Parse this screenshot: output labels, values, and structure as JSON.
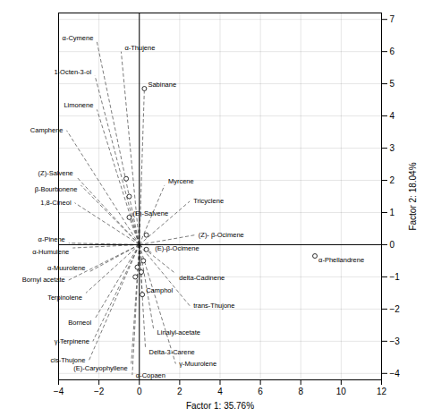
{
  "chart_data": {
    "type": "biplot",
    "xlabel": "Factor 1: 35.76%",
    "ylabel": "Factor 2: 18.04%",
    "xlim": [
      -4,
      12
    ],
    "ylim": [
      -4.2,
      7.2
    ],
    "xticks": [
      -4,
      -2,
      0,
      2,
      4,
      6,
      8,
      10,
      12
    ],
    "yticks": [
      -4,
      -3,
      -2,
      -1,
      0,
      1,
      2,
      3,
      4,
      5,
      6,
      7
    ],
    "grid": true,
    "vectors": [
      {
        "label": "α-Cymene",
        "x": -2.1,
        "y": 6.3
      },
      {
        "label": "α-Thujene",
        "x": -0.9,
        "y": 6.0
      },
      {
        "label": "1-Octen-3-ol",
        "x": -2.2,
        "y": 5.25
      },
      {
        "label": "Sabinane",
        "x": 0.25,
        "y": 4.85
      },
      {
        "label": "Limonene",
        "x": -2.1,
        "y": 4.2
      },
      {
        "label": "Camphene",
        "x": -3.6,
        "y": 3.55
      },
      {
        "label": "(Z)-Salvene",
        "x": -3.1,
        "y": 2.1
      },
      {
        "label": "β-Bourbonene",
        "x": -2.9,
        "y": 1.85
      },
      {
        "label": "1,8-Cineol",
        "x": -3.2,
        "y": 1.3
      },
      {
        "label": "Myrcene",
        "x": 1.25,
        "y": 1.85
      },
      {
        "label": "Tricyclene",
        "x": 2.5,
        "y": 1.35
      },
      {
        "label": "(E)-Salvene",
        "x": -0.5,
        "y": 0.85
      },
      {
        "label": "(Z)- β-Ocimene",
        "x": 2.75,
        "y": 0.3
      },
      {
        "label": "α-Pinene",
        "x": -3.5,
        "y": 0.05
      },
      {
        "label": "α-Humulene",
        "x": -3.3,
        "y": -0.1
      },
      {
        "label": "(E)-β-Ocimene",
        "x": 0.6,
        "y": -0.25
      },
      {
        "label": "delta-Cadinene",
        "x": 1.8,
        "y": -0.9
      },
      {
        "label": "α-Muurolene",
        "x": -2.5,
        "y": -0.85
      },
      {
        "label": "Bornyl acetate",
        "x": -3.5,
        "y": -1.1
      },
      {
        "label": "Terpinolene",
        "x": -2.65,
        "y": -1.5
      },
      {
        "label": "Camphol",
        "x": 0.15,
        "y": -1.55
      },
      {
        "label": "trans-Thujone",
        "x": 2.5,
        "y": -1.9
      },
      {
        "label": "Borneol",
        "x": -2.2,
        "y": -2.3
      },
      {
        "label": "Linalyl-acetate",
        "x": 0.7,
        "y": -2.6
      },
      {
        "label": "γ-Terpinene",
        "x": -2.3,
        "y": -3.0
      },
      {
        "label": "Delta-3-Carene",
        "x": 0.3,
        "y": -3.2
      },
      {
        "label": "cis-Thujone",
        "x": -2.5,
        "y": -3.6
      },
      {
        "label": "(E)-Caryophyllene",
        "x": -0.4,
        "y": -3.7
      },
      {
        "label": "γ-Muurolene",
        "x": 1.8,
        "y": -3.7
      },
      {
        "label": "α-Copaen",
        "x": -0.35,
        "y": -4.05
      }
    ],
    "annotations": [
      {
        "text": "α-Phellandrene",
        "x": 8.7,
        "y": -0.35
      }
    ],
    "points": [
      {
        "x": 0.25,
        "y": 4.85
      },
      {
        "x": -0.65,
        "y": 2.05
      },
      {
        "x": -0.5,
        "y": 1.5
      },
      {
        "x": -0.5,
        "y": 0.85
      },
      {
        "x": 0.35,
        "y": 0.3
      },
      {
        "x": 0.35,
        "y": -0.15
      },
      {
        "x": 0.2,
        "y": -0.5
      },
      {
        "x": -0.1,
        "y": -0.7
      },
      {
        "x": 0.1,
        "y": -0.85
      },
      {
        "x": -0.2,
        "y": -1.0
      },
      {
        "x": 0.15,
        "y": -1.55
      },
      {
        "x": 8.7,
        "y": -0.35
      }
    ]
  }
}
